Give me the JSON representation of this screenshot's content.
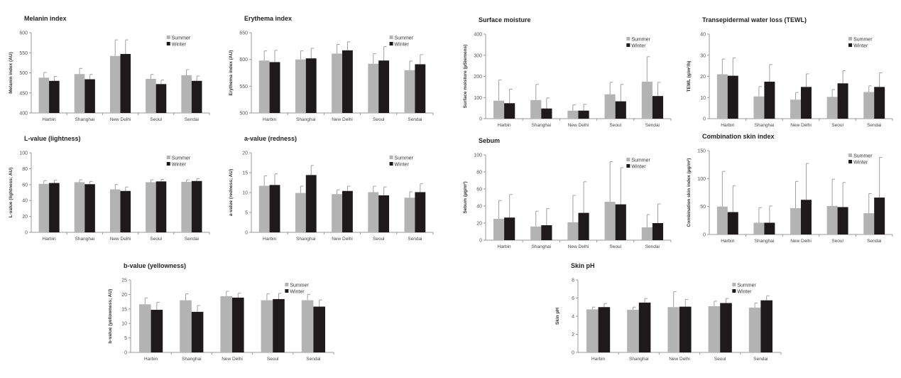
{
  "colors": {
    "summer": "#b3b3b3",
    "winter": "#1e1a1b",
    "axis": "#999999",
    "error": "#a0a0a0"
  },
  "chart_data": [
    {
      "type": "bar",
      "title": "Melanin index",
      "ylabel": "Melanin index (AU)",
      "ylim": [
        400,
        600
      ],
      "ystep": 50,
      "categories": [
        "Harbin",
        "Shanghai",
        "New Delhi",
        "Seoul",
        "Sendai"
      ],
      "legend": "top-right",
      "series": [
        {
          "name": "Summer",
          "values": [
            488,
            497,
            542,
            485,
            494
          ],
          "error_upper": [
            501,
            511,
            582,
            496,
            508
          ]
        },
        {
          "name": "Winter",
          "values": [
            480,
            484,
            547,
            472,
            480
          ],
          "error_upper": [
            491,
            496,
            582,
            482,
            492
          ]
        }
      ]
    },
    {
      "type": "bar",
      "title": "Erythema index",
      "ylabel": "Erythema index (AU)",
      "ylim": [
        500,
        650
      ],
      "ystep": 50,
      "categories": [
        "Harbin",
        "Shanghai",
        "New Delhi",
        "Seoul",
        "Sendai"
      ],
      "legend": "top-right",
      "series": [
        {
          "name": "Summer",
          "values": [
            598,
            600,
            611,
            592,
            580
          ],
          "error_upper": [
            616,
            616,
            628,
            611,
            597
          ]
        },
        {
          "name": "Winter",
          "values": [
            595,
            602,
            617,
            598,
            591
          ],
          "error_upper": [
            617,
            621,
            633,
            624,
            609
          ]
        }
      ]
    },
    {
      "type": "bar",
      "title": "Surface moisture",
      "ylabel": "Surface moisture (µSiemens)",
      "ylim": [
        0,
        400
      ],
      "ystep": 100,
      "categories": [
        "Harbin",
        "Shanghai",
        "New Delhi",
        "Seoul",
        "Sendai"
      ],
      "legend": "top-right",
      "series": [
        {
          "name": "Summer",
          "values": [
            85,
            88,
            38,
            115,
            175
          ],
          "error_upper": [
            183,
            162,
            65,
            172,
            293
          ]
        },
        {
          "name": "Winter",
          "values": [
            73,
            48,
            38,
            82,
            107
          ],
          "error_upper": [
            140,
            98,
            68,
            162,
            172
          ]
        }
      ]
    },
    {
      "type": "bar",
      "title": "Transepidermal water loss (TEWL)",
      "ylabel": "TEWL (g/m²/h)",
      "ylim": [
        0,
        40
      ],
      "ystep": 10,
      "categories": [
        "Harbin",
        "Shanghai",
        "New Delhi",
        "Seoul",
        "Sendai"
      ],
      "legend": "top-right",
      "series": [
        {
          "name": "Summer",
          "values": [
            21,
            10.5,
            9,
            10.3,
            12.6
          ],
          "error_upper": [
            28.2,
            15.2,
            12.4,
            13.8,
            15.5
          ]
        },
        {
          "name": "Winter",
          "values": [
            20.3,
            17.5,
            15,
            16.7,
            15
          ],
          "error_upper": [
            28.7,
            25.6,
            21.2,
            22.7,
            21.7
          ]
        }
      ]
    },
    {
      "type": "bar",
      "title": "L-value (lightness)",
      "ylabel": "L-value (lightness; AU)",
      "ylim": [
        0,
        100
      ],
      "ystep": 20,
      "categories": [
        "Harbin",
        "Shanghai",
        "New Delhi",
        "Seoul",
        "Sendai"
      ],
      "legend": "top-right",
      "series": [
        {
          "name": "Summer",
          "values": [
            61,
            63,
            54,
            63,
            63.5
          ],
          "error_upper": [
            65,
            66,
            60,
            66,
            66
          ]
        },
        {
          "name": "Winter",
          "values": [
            62,
            60.5,
            52,
            64,
            64.5
          ],
          "error_upper": [
            65.5,
            64,
            57,
            66.5,
            67.5
          ]
        }
      ]
    },
    {
      "type": "bar",
      "title": "a-value (redness)",
      "ylabel": "a-value (redness; AU)",
      "ylim": [
        0,
        20
      ],
      "ystep": 5,
      "categories": [
        "Harbin",
        "Shanghai",
        "New Delhi",
        "Seoul",
        "Sendai"
      ],
      "legend": "top-right",
      "series": [
        {
          "name": "Summer",
          "values": [
            11.7,
            9.9,
            9.6,
            10.1,
            8.7
          ],
          "error_upper": [
            14.2,
            11.6,
            10.7,
            11.6,
            10.2
          ]
        },
        {
          "name": "Winter",
          "values": [
            11.9,
            14.4,
            10.4,
            9.3,
            10.1
          ],
          "error_upper": [
            14.7,
            16.8,
            11.6,
            11.4,
            12.2
          ]
        }
      ]
    },
    {
      "type": "bar",
      "title": "Sebum",
      "ylabel": "Sebum (µg/m²)",
      "ylim": [
        0,
        100
      ],
      "ystep": 20,
      "categories": [
        "Harbin",
        "Shanghai",
        "New Delhi",
        "Seoul",
        "Sendai"
      ],
      "legend": "top-right",
      "series": [
        {
          "name": "Summer",
          "values": [
            25,
            16,
            21,
            45,
            15
          ],
          "error_upper": [
            46.5,
            34,
            52.5,
            92,
            30
          ]
        },
        {
          "name": "Winter",
          "values": [
            26.5,
            17.5,
            32,
            42,
            20
          ],
          "error_upper": [
            53.5,
            37,
            68.5,
            85,
            42.5
          ]
        }
      ]
    },
    {
      "type": "bar",
      "title": "Combination skin index",
      "ylabel": "Combination skin index (µg/m²)",
      "ylim": [
        0,
        150
      ],
      "ystep": 50,
      "categories": [
        "Harbin",
        "Shanghai",
        "New Delhi",
        "Seoul",
        "Sendai"
      ],
      "legend": "top-right",
      "series": [
        {
          "name": "Summer",
          "values": [
            50,
            21,
            47,
            51,
            38
          ],
          "error_upper": [
            113,
            48,
            95,
            99,
            73
          ]
        },
        {
          "name": "Winter",
          "values": [
            40,
            21,
            62,
            49,
            66
          ],
          "error_upper": [
            87,
            51,
            127,
            93,
            138
          ]
        }
      ]
    },
    {
      "type": "bar",
      "title": "b-value (yellowness)",
      "ylabel": "b-value (yellowness; AU)",
      "ylim": [
        0,
        25
      ],
      "ystep": 5,
      "categories": [
        "Harbin",
        "Shanghai",
        "New Delhi",
        "Seoul",
        "Sendai"
      ],
      "legend": "top-right",
      "series": [
        {
          "name": "Summer",
          "values": [
            16.6,
            18,
            19.4,
            18,
            18
          ],
          "error_upper": [
            18.8,
            20.2,
            21.1,
            20.2,
            20
          ]
        },
        {
          "name": "Winter",
          "values": [
            14.7,
            14,
            18.9,
            18.4,
            15.8
          ],
          "error_upper": [
            17.3,
            16.2,
            20.4,
            20.4,
            18.1
          ]
        }
      ]
    },
    {
      "type": "bar",
      "title": "Skin pH",
      "ylabel": "Skin pH",
      "ylim": [
        0,
        8
      ],
      "ystep": 2,
      "categories": [
        "Harbin",
        "Shanghai",
        "New Delhi",
        "Seoul",
        "Sendai"
      ],
      "legend": "top-right",
      "series": [
        {
          "name": "Summer",
          "values": [
            4.75,
            4.7,
            5.0,
            5.1,
            4.95
          ],
          "error_upper": [
            5.0,
            5.0,
            6.7,
            5.65,
            5.45
          ]
        },
        {
          "name": "Winter",
          "values": [
            5.0,
            5.5,
            5.05,
            5.45,
            5.75
          ],
          "error_upper": [
            5.4,
            5.95,
            5.85,
            5.95,
            6.25
          ]
        }
      ]
    }
  ]
}
